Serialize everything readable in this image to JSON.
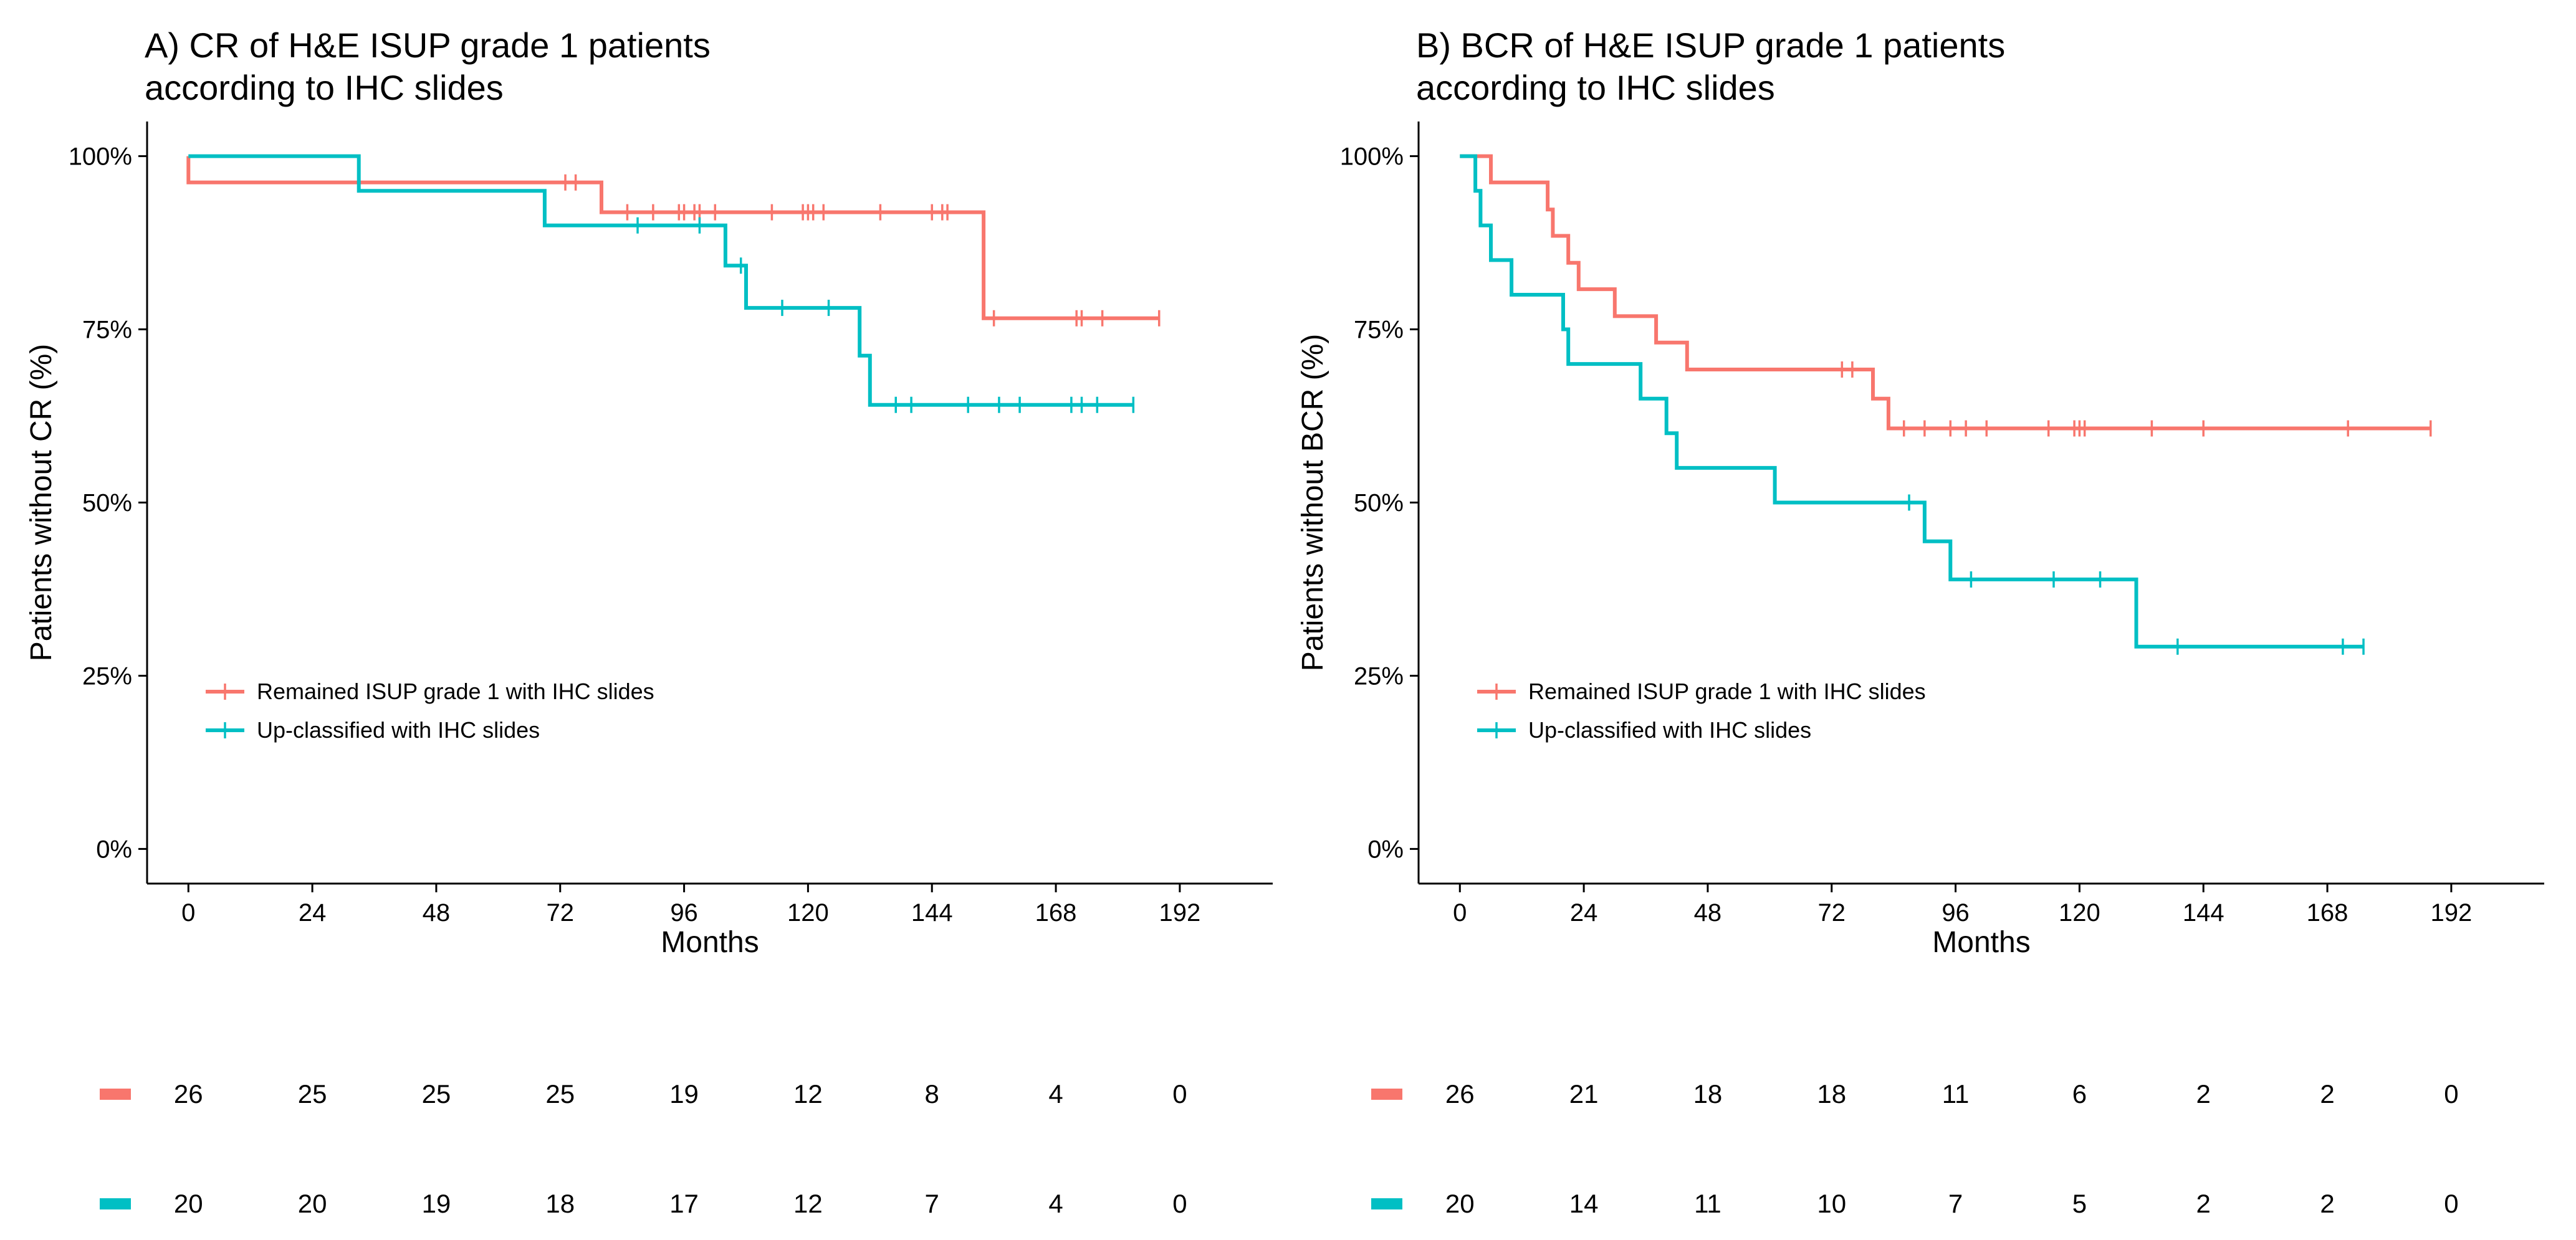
{
  "chart_data": [
    {
      "type": "line",
      "subtype": "kaplan-meier",
      "title_line1": "A) CR of H&E ISUP grade 1 patients",
      "title_line2": " according to IHC slides",
      "xlabel": "Months",
      "ylabel": "Patients without CR (%)",
      "xlim": [
        -8,
        210
      ],
      "ylim": [
        -0.05,
        1.05
      ],
      "x_ticks": [
        0,
        24,
        48,
        72,
        96,
        120,
        144,
        168,
        192
      ],
      "y_ticks": [
        {
          "value": 0,
          "label": "0%"
        },
        {
          "value": 0.25,
          "label": "25%"
        },
        {
          "value": 0.5,
          "label": "50%"
        },
        {
          "value": 0.75,
          "label": "75%"
        },
        {
          "value": 1,
          "label": "100%"
        }
      ],
      "legend_position": "bottom-left",
      "series": [
        {
          "name": "Remained ISUP grade 1 with IHC slides",
          "color": "#F8766D",
          "steps": [
            [
              0,
              1.0
            ],
            [
              0,
              0.962
            ],
            [
              80,
              0.962
            ],
            [
              80,
              0.919
            ],
            [
              154,
              0.919
            ],
            [
              154,
              0.766
            ],
            [
              188,
              0.766
            ]
          ],
          "censor": [
            [
              73,
              0.962
            ],
            [
              75,
              0.962
            ],
            [
              85,
              0.919
            ],
            [
              90,
              0.919
            ],
            [
              95,
              0.919
            ],
            [
              96,
              0.919
            ],
            [
              98,
              0.919
            ],
            [
              99,
              0.919
            ],
            [
              102,
              0.919
            ],
            [
              113,
              0.919
            ],
            [
              119,
              0.919
            ],
            [
              120,
              0.919
            ],
            [
              121,
              0.919
            ],
            [
              123,
              0.919
            ],
            [
              134,
              0.919
            ],
            [
              144,
              0.919
            ],
            [
              146,
              0.919
            ],
            [
              147,
              0.919
            ],
            [
              156,
              0.766
            ],
            [
              172,
              0.766
            ],
            [
              173,
              0.766
            ],
            [
              177,
              0.766
            ],
            [
              188,
              0.766
            ]
          ]
        },
        {
          "name": "Up-classified with IHC slides",
          "color": "#00BFC4",
          "steps": [
            [
              0,
              1.0
            ],
            [
              33,
              1.0
            ],
            [
              33,
              0.95
            ],
            [
              69,
              0.95
            ],
            [
              69,
              0.9
            ],
            [
              104,
              0.9
            ],
            [
              104,
              0.842
            ],
            [
              108,
              0.842
            ],
            [
              108,
              0.781
            ],
            [
              130,
              0.781
            ],
            [
              130,
              0.712
            ],
            [
              132,
              0.712
            ],
            [
              132,
              0.641
            ],
            [
              183,
              0.641
            ]
          ],
          "censor": [
            [
              87,
              0.9
            ],
            [
              99,
              0.9
            ],
            [
              107,
              0.842
            ],
            [
              115,
              0.781
            ],
            [
              124,
              0.781
            ],
            [
              137,
              0.641
            ],
            [
              140,
              0.641
            ],
            [
              151,
              0.641
            ],
            [
              157,
              0.641
            ],
            [
              161,
              0.641
            ],
            [
              171,
              0.641
            ],
            [
              173,
              0.641
            ],
            [
              176,
              0.641
            ],
            [
              183,
              0.641
            ]
          ]
        }
      ],
      "risk_table": {
        "times": [
          0,
          24,
          48,
          72,
          96,
          120,
          144,
          168,
          192
        ],
        "rows": [
          {
            "color": "#F8766D",
            "counts": [
              "26",
              "25",
              "25",
              "25",
              "19",
              "12",
              "8",
              "4",
              "0"
            ]
          },
          {
            "color": "#00BFC4",
            "counts": [
              "20",
              "20",
              "19",
              "18",
              "17",
              "12",
              "7",
              "4",
              "0"
            ]
          }
        ]
      }
    },
    {
      "type": "line",
      "subtype": "kaplan-meier",
      "title_line1": "B) BCR of H&E ISUP grade 1 patients",
      "title_line2": " according to IHC slides",
      "xlabel": "Months",
      "ylabel": "Patients without BCR (%)",
      "xlim": [
        -8,
        210
      ],
      "ylim": [
        -0.05,
        1.05
      ],
      "x_ticks": [
        0,
        24,
        48,
        72,
        96,
        120,
        144,
        168,
        192
      ],
      "y_ticks": [
        {
          "value": 0,
          "label": "0%"
        },
        {
          "value": 0.25,
          "label": "25%"
        },
        {
          "value": 0.5,
          "label": "50%"
        },
        {
          "value": 0.75,
          "label": "75%"
        },
        {
          "value": 1,
          "label": "100%"
        }
      ],
      "legend_position": "bottom-left",
      "series": [
        {
          "name": "Remained ISUP grade 1 with IHC slides",
          "color": "#F8766D",
          "steps": [
            [
              0,
              1.0
            ],
            [
              6,
              1.0
            ],
            [
              6,
              0.962
            ],
            [
              17,
              0.962
            ],
            [
              17,
              0.923
            ],
            [
              18,
              0.923
            ],
            [
              18,
              0.885
            ],
            [
              21,
              0.885
            ],
            [
              21,
              0.846
            ],
            [
              23,
              0.846
            ],
            [
              23,
              0.808
            ],
            [
              30,
              0.808
            ],
            [
              30,
              0.769
            ],
            [
              38,
              0.769
            ],
            [
              38,
              0.731
            ],
            [
              44,
              0.731
            ],
            [
              44,
              0.692
            ],
            [
              80,
              0.692
            ],
            [
              80,
              0.65
            ],
            [
              83,
              0.65
            ],
            [
              83,
              0.607
            ],
            [
              188,
              0.607
            ]
          ],
          "censor": [
            [
              74,
              0.692
            ],
            [
              76,
              0.692
            ],
            [
              86,
              0.607
            ],
            [
              90,
              0.607
            ],
            [
              95,
              0.607
            ],
            [
              98,
              0.607
            ],
            [
              102,
              0.607
            ],
            [
              114,
              0.607
            ],
            [
              119,
              0.607
            ],
            [
              120,
              0.607
            ],
            [
              121,
              0.607
            ],
            [
              134,
              0.607
            ],
            [
              144,
              0.607
            ],
            [
              172,
              0.607
            ],
            [
              188,
              0.607
            ]
          ]
        },
        {
          "name": "Up-classified with IHC slides",
          "color": "#00BFC4",
          "steps": [
            [
              0,
              1.0
            ],
            [
              3,
              1.0
            ],
            [
              3,
              0.95
            ],
            [
              4,
              0.95
            ],
            [
              4,
              0.9
            ],
            [
              6,
              0.9
            ],
            [
              6,
              0.85
            ],
            [
              10,
              0.85
            ],
            [
              10,
              0.8
            ],
            [
              20,
              0.8
            ],
            [
              20,
              0.75
            ],
            [
              21,
              0.75
            ],
            [
              21,
              0.7
            ],
            [
              35,
              0.7
            ],
            [
              35,
              0.65
            ],
            [
              40,
              0.65
            ],
            [
              40,
              0.6
            ],
            [
              42,
              0.6
            ],
            [
              42,
              0.55
            ],
            [
              61,
              0.55
            ],
            [
              61,
              0.5
            ],
            [
              90,
              0.5
            ],
            [
              90,
              0.444
            ],
            [
              95,
              0.444
            ],
            [
              95,
              0.389
            ],
            [
              131,
              0.389
            ],
            [
              131,
              0.292
            ],
            [
              175,
              0.292
            ]
          ],
          "censor": [
            [
              87,
              0.5
            ],
            [
              99,
              0.389
            ],
            [
              115,
              0.389
            ],
            [
              124,
              0.389
            ],
            [
              139,
              0.292
            ],
            [
              171,
              0.292
            ],
            [
              175,
              0.292
            ]
          ]
        }
      ],
      "risk_table": {
        "times": [
          0,
          24,
          48,
          72,
          96,
          120,
          144,
          168,
          192
        ],
        "rows": [
          {
            "color": "#F8766D",
            "counts": [
              "26",
              "21",
              "18",
              "18",
              "11",
              "6",
              "2",
              "2",
              "0"
            ]
          },
          {
            "color": "#00BFC4",
            "counts": [
              "20",
              "14",
              "11",
              "10",
              "7",
              "5",
              "2",
              "2",
              "0"
            ]
          }
        ]
      }
    }
  ]
}
